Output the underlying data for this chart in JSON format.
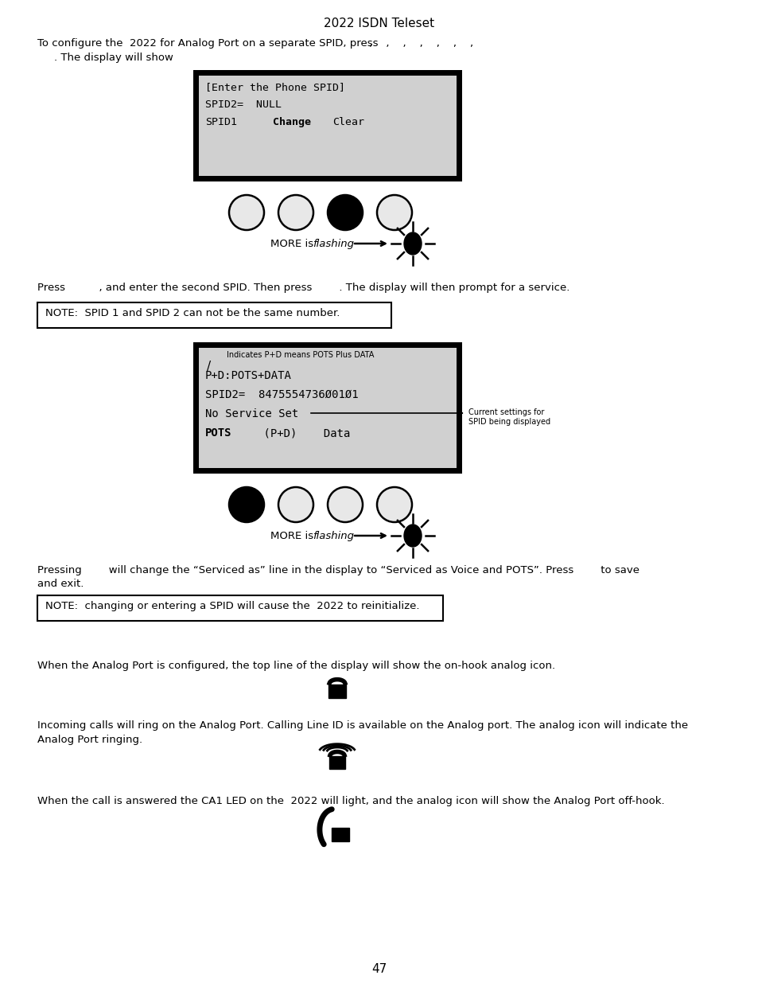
{
  "title": "2022 ISDN Teleset",
  "page_number": "47",
  "background_color": "#ffffff",
  "text_color": "#000000",
  "display_bg": "#d0d0d0",
  "display_border": "#000000",
  "para1": "To configure the  2022 for Analog Port on a separate SPID, press",
  "para1_commas": " ,    ,    ,    ,    ,    ,    ,",
  "para1b": ". The display will show",
  "press_line1": "Press          , and enter the second SPID. Then press        . The display will then prompt for a service.",
  "note1": "NOTE:  SPID 1 and SPID 2 can not be the same number.",
  "pressing_line1": "Pressing        will change the “Serviced as” line in the display to “Serviced as Voice and POTS”. Press        to save",
  "pressing_line2": "and exit.",
  "note2": "NOTE:  changing or entering a SPID will cause the  2022 to reinitialize.",
  "analog_line1": "When the Analog Port is configured, the top line of the display will show the on-hook analog icon.",
  "analog_line2a": "Incoming calls will ring on the Analog Port. Calling Line ID is available on the Analog port. The analog icon will indicate the",
  "analog_line2b": "Analog Port ringing.",
  "analog_line3": "When the call is answered the CA1 LED on the  2022 will light, and the analog icon will show the Analog Port off-hook."
}
